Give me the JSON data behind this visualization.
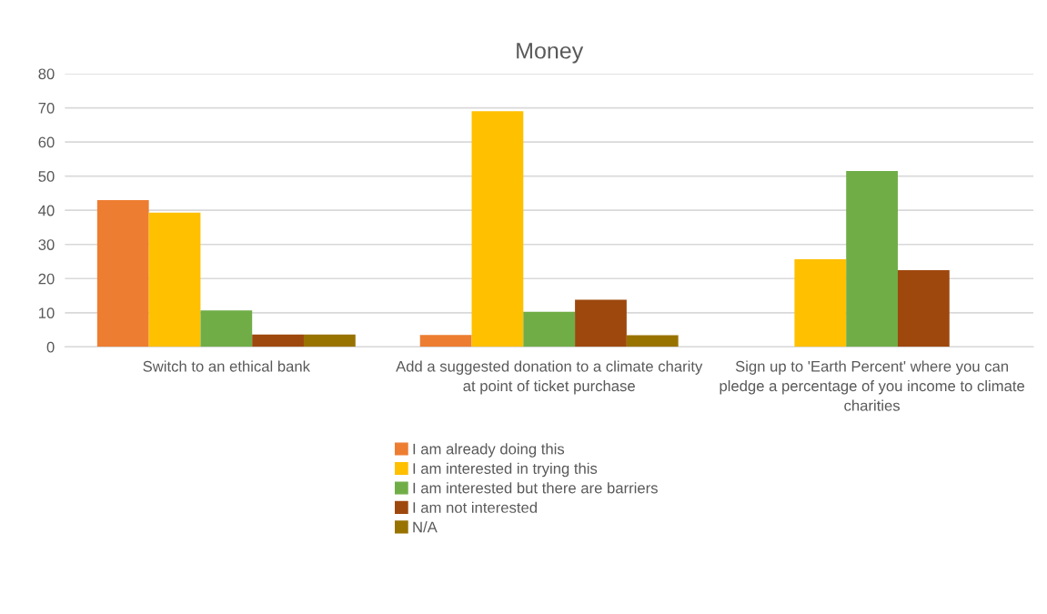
{
  "chart_data": {
    "type": "bar",
    "title": "Money",
    "categories": [
      "Switch to an ethical bank",
      "Add a suggested donation to a climate charity at point of ticket purchase",
      "Sign up to 'Earth Percent' where you can pledge a percentage of you income to climate charities"
    ],
    "series": [
      {
        "name": "I am already doing this",
        "color": "#ed7d31",
        "values": [
          43,
          3.5,
          0
        ]
      },
      {
        "name": "I am interested in trying this",
        "color": "#ffc000",
        "values": [
          39.3,
          69,
          25.7
        ]
      },
      {
        "name": "I am interested but there are barriers",
        "color": "#70ad47",
        "values": [
          10.7,
          10.3,
          51.5
        ]
      },
      {
        "name": "I am not interested",
        "color": "#9e480e",
        "values": [
          3.6,
          13.8,
          22.5
        ]
      },
      {
        "name": "N/A",
        "color": "#997300",
        "values": [
          3.6,
          3.4,
          0
        ]
      }
    ],
    "ylim": [
      0,
      80
    ],
    "yticks": [
      0,
      10,
      20,
      30,
      40,
      50,
      60,
      70,
      80
    ],
    "grid": "y",
    "legend": "bottom"
  }
}
